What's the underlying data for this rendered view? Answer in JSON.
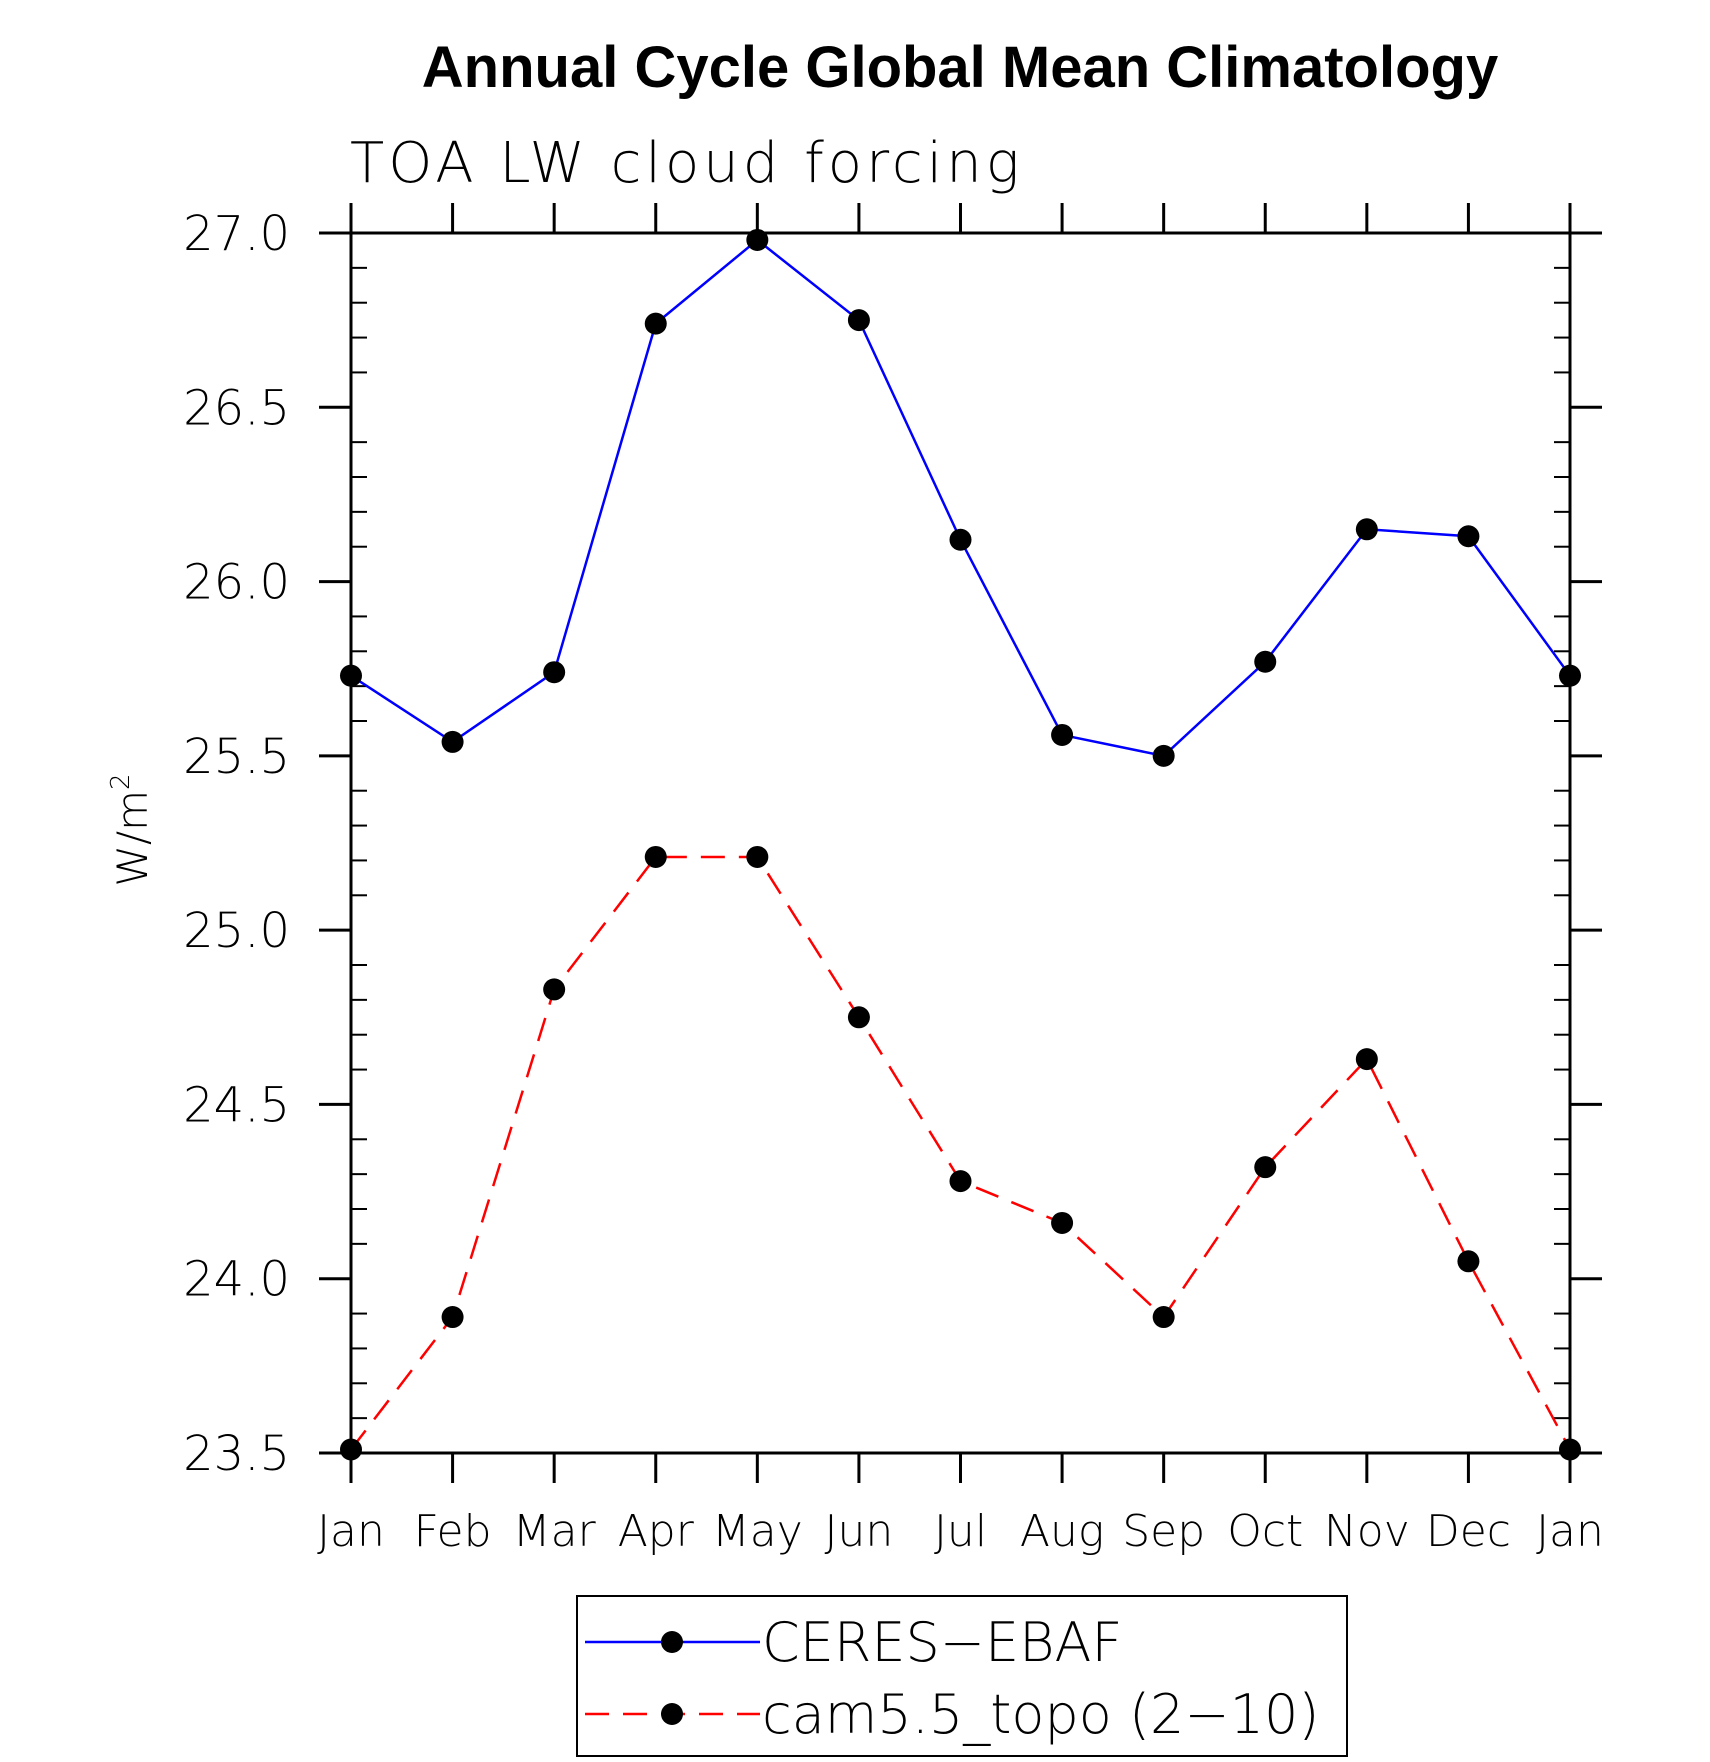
{
  "chart_data": {
    "type": "line",
    "title": "Annual Cycle Global Mean Climatology",
    "subtitle": "TOA LW cloud forcing",
    "ylabel": "W/m",
    "ylabel_superscript": "2",
    "xlabel": "",
    "ylim": [
      23.5,
      27.0
    ],
    "yticks": [
      "23.5",
      "24.0",
      "24.5",
      "25.0",
      "25.5",
      "26.0",
      "26.5",
      "27.0"
    ],
    "categories": [
      "Jan",
      "Feb",
      "Mar",
      "Apr",
      "May",
      "Jun",
      "Jul",
      "Aug",
      "Sep",
      "Oct",
      "Nov",
      "Dec",
      "Jan"
    ],
    "grid": false,
    "legend_position": "bottom",
    "series": [
      {
        "name": "CERES−EBAF",
        "color": "#0000ff",
        "dash": "solid",
        "marker": "filled-circle",
        "values": [
          25.73,
          25.54,
          25.74,
          26.74,
          26.98,
          26.75,
          26.12,
          25.56,
          25.5,
          25.77,
          26.15,
          26.13,
          25.73
        ]
      },
      {
        "name": "cam5.5_topo (2−10)",
        "color": "#ff0000",
        "dash": "dashed",
        "marker": "filled-circle",
        "values": [
          23.51,
          23.89,
          24.83,
          25.21,
          25.21,
          24.75,
          24.28,
          24.16,
          23.89,
          24.32,
          24.63,
          24.05,
          23.51
        ]
      }
    ]
  }
}
